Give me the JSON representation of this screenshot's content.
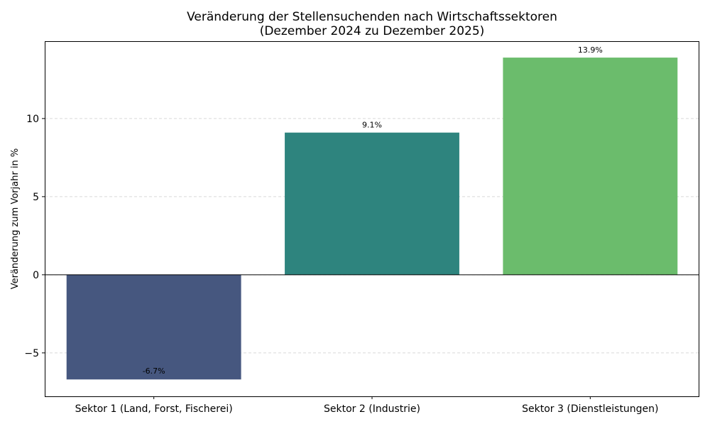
{
  "chart_data": {
    "type": "bar",
    "title": "Veränderung der Stellensuchenden nach Wirtschaftssektoren",
    "subtitle": "(Dezember 2024 zu Dezember 2025)",
    "xlabel": "",
    "ylabel": "Veränderung zum Vorjahr in %",
    "categories": [
      "Sektor 1 (Land, Forst, Fischerei)",
      "Sektor 2 (Industrie)",
      "Sektor 3 (Dienstleistungen)"
    ],
    "values": [
      -6.7,
      9.1,
      13.9
    ],
    "data_labels": [
      "-6.7%",
      "9.1%",
      "13.9%"
    ],
    "colors": [
      "#46577f",
      "#2e847e",
      "#6bbc6c"
    ],
    "ylim": [
      -7.78,
      14.95
    ],
    "yticks": [
      -5,
      0,
      5,
      10
    ],
    "ytick_labels": [
      "−5",
      "0",
      "5",
      "10"
    ],
    "grid": "y-dashed",
    "zero_line": true
  }
}
